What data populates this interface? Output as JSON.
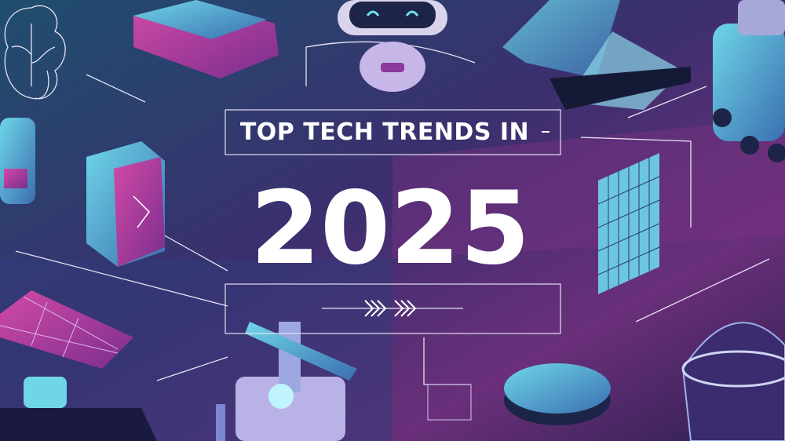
{
  "banner": {
    "heading": "TOP TECH TRENDS IN",
    "year": "2025"
  }
}
